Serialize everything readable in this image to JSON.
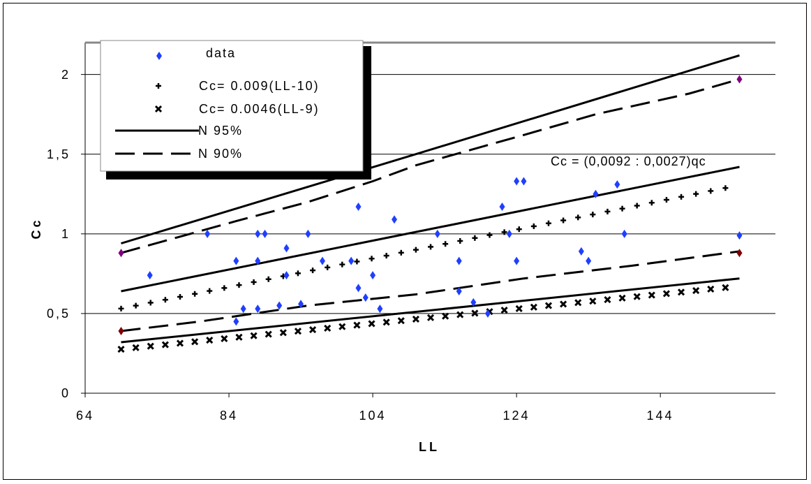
{
  "chart_data": {
    "type": "scatter",
    "xlabel": "LL",
    "ylabel": "Cc",
    "xlim": [
      64,
      160
    ],
    "ylim": [
      0,
      2.2
    ],
    "x_ticks": [
      "64",
      "84",
      "104",
      "124",
      "144"
    ],
    "y_ticks": [
      "0",
      "0,5",
      "1",
      "1,5",
      "2"
    ],
    "grid": "horizontal",
    "legend_position": "top-left",
    "annotation": "Cc = (0,0092 : 0,0027)qc",
    "colors": {
      "data": "#1f3fff",
      "endpoint": "#800000",
      "endpoint_top": "#800080",
      "line": "#000000"
    },
    "series": [
      {
        "name": "data",
        "marker": "diamond",
        "points": [
          [
            69,
            0.88
          ],
          [
            73,
            0.74
          ],
          [
            81,
            1.0
          ],
          [
            85,
            0.83
          ],
          [
            85,
            0.45
          ],
          [
            86,
            0.53
          ],
          [
            88,
            0.53
          ],
          [
            88,
            0.83
          ],
          [
            88,
            1.0
          ],
          [
            89,
            1.0
          ],
          [
            91,
            0.55
          ],
          [
            92,
            0.91
          ],
          [
            92,
            0.74
          ],
          [
            94,
            0.56
          ],
          [
            95,
            1.0
          ],
          [
            97,
            0.83
          ],
          [
            101,
            0.83
          ],
          [
            102,
            1.17
          ],
          [
            102,
            0.66
          ],
          [
            103,
            0.6
          ],
          [
            104,
            0.74
          ],
          [
            105,
            0.53
          ],
          [
            107,
            1.09
          ],
          [
            113,
            1.0
          ],
          [
            116,
            0.83
          ],
          [
            116,
            0.64
          ],
          [
            118,
            0.57
          ],
          [
            120,
            0.5
          ],
          [
            122,
            1.17
          ],
          [
            123,
            1.0
          ],
          [
            124,
            0.83
          ],
          [
            124,
            1.33
          ],
          [
            125,
            1.33
          ],
          [
            133,
            0.89
          ],
          [
            134,
            0.83
          ],
          [
            135,
            1.25
          ],
          [
            138,
            1.31
          ],
          [
            139,
            1.0
          ],
          [
            155,
            1.97
          ],
          [
            155,
            0.99
          ],
          [
            155,
            0.88
          ],
          [
            69,
            0.39
          ]
        ]
      },
      {
        "name": "Cc= 0.009(LL-10)",
        "marker": "plus",
        "formula": "0.009*(x-10)"
      },
      {
        "name": "Cc= 0.0046(LL-9)",
        "marker": "cross",
        "formula": "0.0046*(x-9)"
      },
      {
        "name": "N 95%",
        "style": "solid",
        "lines": [
          [
            [
              69,
              0.94
            ],
            [
              110,
              1.5
            ],
            [
              155,
              2.12
            ]
          ],
          [
            [
              69,
              0.64
            ],
            [
              155,
              1.42
            ]
          ],
          [
            [
              69,
              0.32
            ],
            [
              155,
              0.72
            ]
          ]
        ]
      },
      {
        "name": "N 90%",
        "style": "dashed",
        "lines": [
          [
            [
              69,
              0.88
            ],
            [
              85,
              1.08
            ],
            [
              95,
              1.2
            ],
            [
              104,
              1.33
            ],
            [
              110,
              1.43
            ],
            [
              125,
              1.62
            ],
            [
              135,
              1.75
            ],
            [
              148,
              1.88
            ],
            [
              155,
              1.97
            ]
          ],
          [
            [
              69,
              0.39
            ],
            [
              80,
              0.45
            ],
            [
              95,
              0.55
            ],
            [
              110,
              0.62
            ],
            [
              125,
              0.72
            ],
            [
              140,
              0.8
            ],
            [
              155,
              0.89
            ]
          ]
        ]
      }
    ]
  }
}
